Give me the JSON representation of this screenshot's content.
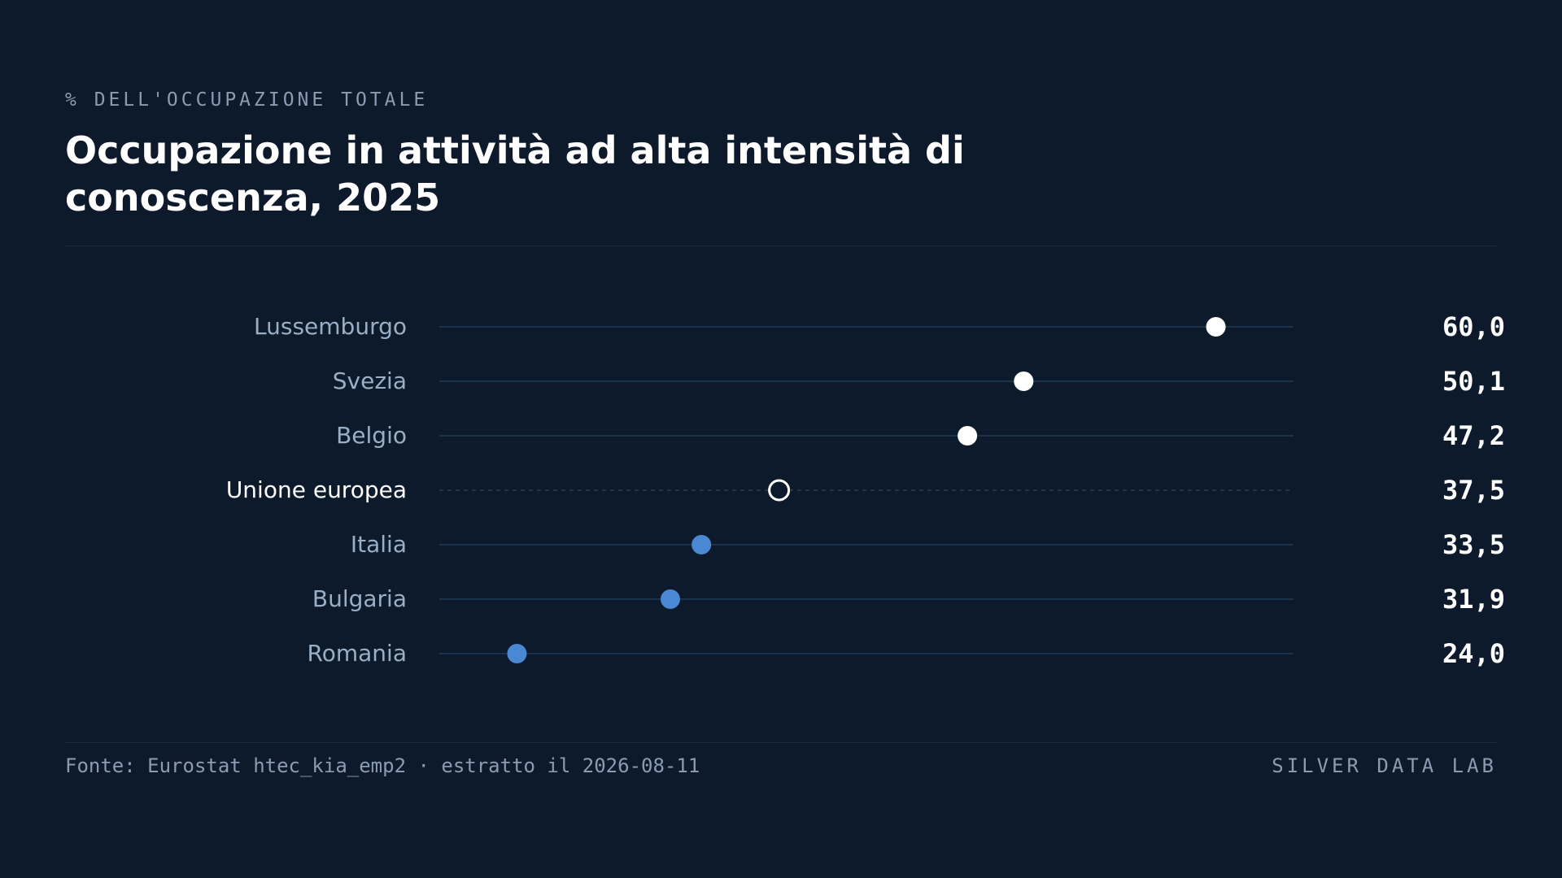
{
  "header": {
    "eyebrow": "% DELL'OCCUPAZIONE TOTALE",
    "title": "Occupazione in attività ad alta intensità di conoscenza, 2025"
  },
  "footer": {
    "source": "Fonte: Eurostat htec_kia_emp2 · estratto il 2026-08-11",
    "brand": "SILVER DATA LAB"
  },
  "colors": {
    "background": "#0d1a2b",
    "highlight": "#ffffff",
    "accent": "#4a88d4",
    "track": "#1f3a55",
    "label": "#9aaec6",
    "label_highlight": "#ffffff"
  },
  "chart_data": {
    "type": "dot",
    "xlim": [
      20,
      64
    ],
    "categories": [
      "Lussemburgo",
      "Svezia",
      "Belgio",
      "Unione europea",
      "Italia",
      "Bulgaria",
      "Romania"
    ],
    "values": [
      60.0,
      50.1,
      47.2,
      37.5,
      33.5,
      31.9,
      24.0
    ],
    "value_labels": [
      "60,0",
      "50,1",
      "47,2",
      "37,5",
      "33,5",
      "31,9",
      "24,0"
    ],
    "styles": [
      "highlight",
      "highlight",
      "highlight",
      "reference",
      "accent",
      "accent",
      "accent"
    ]
  }
}
